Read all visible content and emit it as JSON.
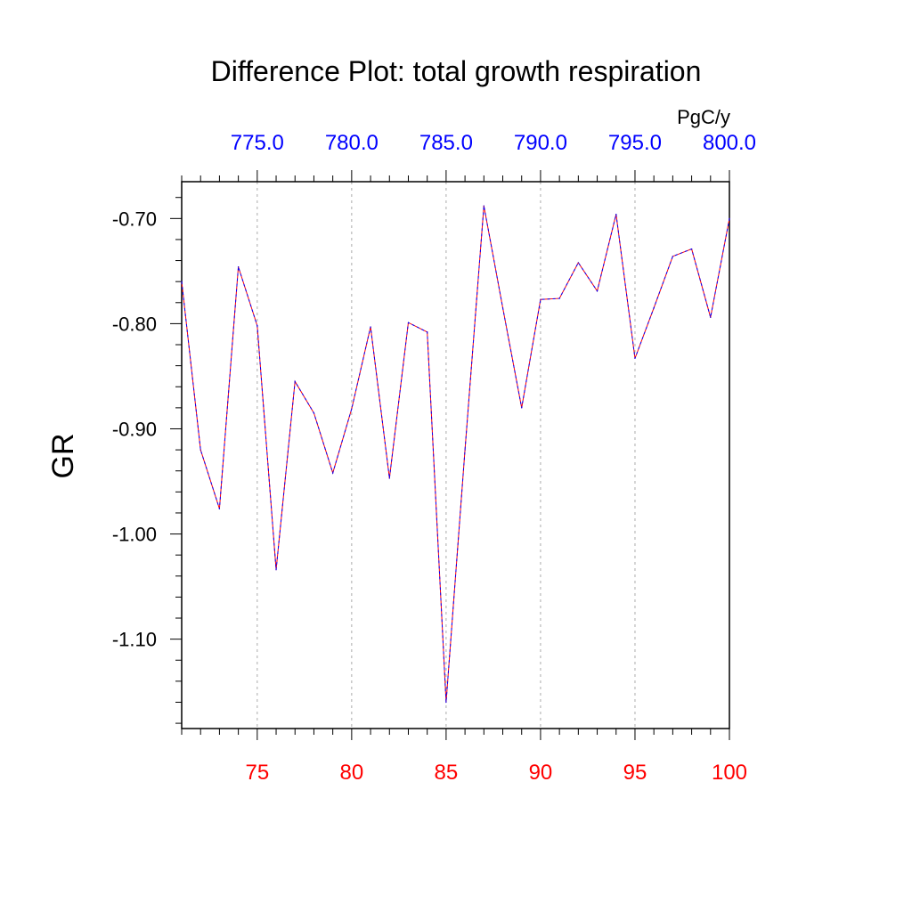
{
  "chart_data": {
    "type": "line",
    "title": "Difference Plot: total growth respiration",
    "units": "PgC/y",
    "ylabel": "GR",
    "xlabel": "",
    "xlim": [
      71,
      100
    ],
    "ylim": [
      -1.185,
      -0.665
    ],
    "x_bottom_ticks": [
      75,
      80,
      85,
      90,
      95,
      100
    ],
    "x_bottom_tick_labels": [
      "75",
      "80",
      "85",
      "90",
      "95",
      "100"
    ],
    "x_top_ticks": [
      75,
      80,
      85,
      90,
      95,
      100
    ],
    "x_top_tick_labels": [
      "775.0",
      "780.0",
      "785.0",
      "790.0",
      "795.0",
      "800.0"
    ],
    "y_ticks": [
      -0.7,
      -0.8,
      -0.9,
      -1.0,
      -1.1
    ],
    "y_tick_labels": [
      "-0.70",
      "-0.80",
      "-0.90",
      "-1.00",
      "-1.10"
    ],
    "grid": "vertical dashed at major x ticks",
    "colors": {
      "bottom_axis_labels": "#ff0000",
      "top_axis_labels": "#0000ff",
      "series_solid": "#ff0000",
      "series_dashed": "#0000ff"
    },
    "x": [
      71,
      72,
      73,
      74,
      75,
      76,
      77,
      78,
      79,
      80,
      81,
      82,
      83,
      84,
      85,
      86,
      87,
      88,
      89,
      90,
      91,
      92,
      93,
      94,
      95,
      96,
      97,
      98,
      99,
      100
    ],
    "series": [
      {
        "values": [
          -0.76,
          -0.92,
          -0.976,
          -0.746,
          -0.802,
          -1.034,
          -0.855,
          -0.885,
          -0.942,
          -0.881,
          -0.803,
          -0.947,
          -0.799,
          -0.808,
          -1.16,
          -0.92,
          -0.688,
          -0.785,
          -0.88,
          -0.777,
          -0.776,
          -0.742,
          -0.769,
          -0.696,
          -0.833,
          -0.785,
          -0.736,
          -0.729,
          -0.794,
          -0.7
        ]
      },
      {
        "values": [
          -0.76,
          -0.92,
          -0.976,
          -0.746,
          -0.802,
          -1.034,
          -0.855,
          -0.885,
          -0.942,
          -0.881,
          -0.803,
          -0.947,
          -0.799,
          -0.808,
          -1.16,
          -0.92,
          -0.688,
          -0.785,
          -0.88,
          -0.777,
          -0.776,
          -0.742,
          -0.769,
          -0.696,
          -0.833,
          -0.785,
          -0.736,
          -0.729,
          -0.794,
          -0.7
        ]
      }
    ]
  }
}
